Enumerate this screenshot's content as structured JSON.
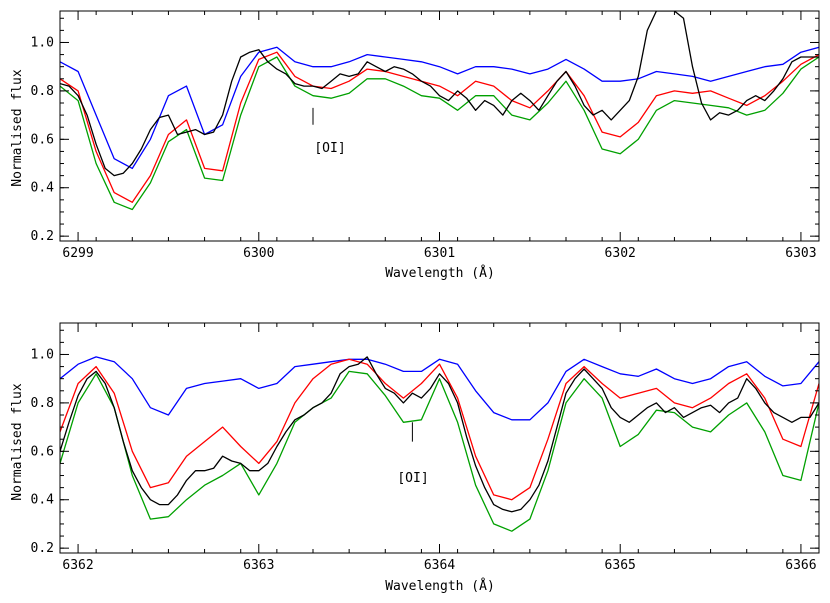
{
  "chart_data": [
    {
      "type": "line",
      "xlabel": "Wavelength (Å)",
      "ylabel": "Normalised flux",
      "xlim": [
        6298.9,
        6303.1
      ],
      "ylim": [
        0.18,
        1.13
      ],
      "xticks": [
        6299,
        6300,
        6301,
        6302,
        6303
      ],
      "yticks": [
        0.2,
        0.4,
        0.6,
        0.8,
        1.0
      ],
      "annotation": {
        "text": "[OI]",
        "x": 6300.3,
        "y_top": 0.73,
        "y_bottom": 0.66
      },
      "series": [
        {
          "color": "#0000ff",
          "x": [
            6298.9,
            6299.0,
            6299.1,
            6299.2,
            6299.3,
            6299.4,
            6299.5,
            6299.6,
            6299.7,
            6299.8,
            6299.9,
            6300.0,
            6300.1,
            6300.2,
            6300.3,
            6300.4,
            6300.5,
            6300.6,
            6300.7,
            6300.8,
            6300.9,
            6301.0,
            6301.1,
            6301.2,
            6301.3,
            6301.4,
            6301.5,
            6301.6,
            6301.7,
            6301.8,
            6301.9,
            6302.0,
            6302.1,
            6302.2,
            6302.3,
            6302.4,
            6302.5,
            6302.6,
            6302.7,
            6302.8,
            6302.9,
            6303.0,
            6303.1
          ],
          "y": [
            0.92,
            0.88,
            0.7,
            0.52,
            0.48,
            0.6,
            0.78,
            0.82,
            0.62,
            0.66,
            0.86,
            0.96,
            0.98,
            0.92,
            0.9,
            0.9,
            0.92,
            0.95,
            0.94,
            0.93,
            0.92,
            0.9,
            0.87,
            0.9,
            0.9,
            0.89,
            0.87,
            0.89,
            0.93,
            0.89,
            0.84,
            0.84,
            0.85,
            0.88,
            0.87,
            0.86,
            0.84,
            0.86,
            0.88,
            0.9,
            0.91,
            0.96,
            0.98
          ]
        },
        {
          "color": "#ff0000",
          "x": [
            6298.9,
            6299.0,
            6299.1,
            6299.2,
            6299.3,
            6299.4,
            6299.5,
            6299.6,
            6299.7,
            6299.8,
            6299.9,
            6300.0,
            6300.1,
            6300.2,
            6300.3,
            6300.4,
            6300.5,
            6300.6,
            6300.7,
            6300.8,
            6300.9,
            6301.0,
            6301.1,
            6301.2,
            6301.3,
            6301.4,
            6301.5,
            6301.6,
            6301.7,
            6301.8,
            6301.9,
            6302.0,
            6302.1,
            6302.2,
            6302.3,
            6302.4,
            6302.5,
            6302.6,
            6302.7,
            6302.8,
            6302.9,
            6303.0,
            6303.1
          ],
          "y": [
            0.85,
            0.8,
            0.55,
            0.38,
            0.34,
            0.45,
            0.62,
            0.68,
            0.48,
            0.47,
            0.75,
            0.93,
            0.96,
            0.86,
            0.82,
            0.81,
            0.84,
            0.89,
            0.88,
            0.86,
            0.84,
            0.82,
            0.78,
            0.84,
            0.82,
            0.76,
            0.73,
            0.8,
            0.88,
            0.78,
            0.63,
            0.61,
            0.67,
            0.78,
            0.8,
            0.79,
            0.8,
            0.77,
            0.74,
            0.78,
            0.84,
            0.91,
            0.95
          ]
        },
        {
          "color": "#00a000",
          "x": [
            6298.9,
            6299.0,
            6299.1,
            6299.2,
            6299.3,
            6299.4,
            6299.5,
            6299.6,
            6299.7,
            6299.8,
            6299.9,
            6300.0,
            6300.1,
            6300.2,
            6300.3,
            6300.4,
            6300.5,
            6300.6,
            6300.7,
            6300.8,
            6300.9,
            6301.0,
            6301.1,
            6301.2,
            6301.3,
            6301.4,
            6301.5,
            6301.6,
            6301.7,
            6301.8,
            6301.9,
            6302.0,
            6302.1,
            6302.2,
            6302.3,
            6302.4,
            6302.5,
            6302.6,
            6302.7,
            6302.8,
            6302.9,
            6303.0,
            6303.1
          ],
          "y": [
            0.82,
            0.76,
            0.5,
            0.34,
            0.31,
            0.42,
            0.59,
            0.64,
            0.44,
            0.43,
            0.7,
            0.9,
            0.94,
            0.82,
            0.78,
            0.77,
            0.79,
            0.85,
            0.85,
            0.82,
            0.78,
            0.77,
            0.72,
            0.78,
            0.78,
            0.7,
            0.68,
            0.75,
            0.84,
            0.72,
            0.56,
            0.54,
            0.6,
            0.72,
            0.76,
            0.75,
            0.74,
            0.73,
            0.7,
            0.72,
            0.79,
            0.89,
            0.94
          ]
        },
        {
          "color": "#000000",
          "x": [
            6298.9,
            6298.95,
            6299.0,
            6299.05,
            6299.1,
            6299.15,
            6299.2,
            6299.25,
            6299.3,
            6299.35,
            6299.4,
            6299.45,
            6299.5,
            6299.55,
            6299.6,
            6299.65,
            6299.7,
            6299.75,
            6299.8,
            6299.85,
            6299.9,
            6299.95,
            6300.0,
            6300.05,
            6300.1,
            6300.15,
            6300.2,
            6300.25,
            6300.3,
            6300.35,
            6300.4,
            6300.45,
            6300.5,
            6300.55,
            6300.6,
            6300.65,
            6300.7,
            6300.75,
            6300.8,
            6300.85,
            6300.9,
            6300.95,
            6301.0,
            6301.05,
            6301.1,
            6301.15,
            6301.2,
            6301.25,
            6301.3,
            6301.35,
            6301.4,
            6301.45,
            6301.5,
            6301.55,
            6301.6,
            6301.65,
            6301.7,
            6301.75,
            6301.8,
            6301.85,
            6301.9,
            6301.95,
            6302.0,
            6302.05,
            6302.1,
            6302.15,
            6302.2,
            6302.25,
            6302.3,
            6302.35,
            6302.4,
            6302.45,
            6302.5,
            6302.55,
            6302.6,
            6302.65,
            6302.7,
            6302.75,
            6302.8,
            6302.85,
            6302.9,
            6302.95,
            6303.0,
            6303.05,
            6303.1
          ],
          "y": [
            0.83,
            0.82,
            0.78,
            0.7,
            0.58,
            0.48,
            0.45,
            0.46,
            0.5,
            0.56,
            0.64,
            0.69,
            0.7,
            0.62,
            0.63,
            0.64,
            0.62,
            0.63,
            0.7,
            0.84,
            0.94,
            0.96,
            0.97,
            0.92,
            0.89,
            0.87,
            0.83,
            0.82,
            0.82,
            0.81,
            0.84,
            0.87,
            0.86,
            0.87,
            0.92,
            0.9,
            0.88,
            0.9,
            0.89,
            0.87,
            0.84,
            0.82,
            0.78,
            0.76,
            0.8,
            0.77,
            0.72,
            0.76,
            0.74,
            0.7,
            0.76,
            0.79,
            0.76,
            0.72,
            0.78,
            0.84,
            0.88,
            0.82,
            0.74,
            0.7,
            0.72,
            0.68,
            0.72,
            0.76,
            0.86,
            1.05,
            1.13,
            1.13,
            1.13,
            1.1,
            0.9,
            0.75,
            0.68,
            0.71,
            0.7,
            0.72,
            0.76,
            0.78,
            0.76,
            0.8,
            0.85,
            0.92,
            0.94,
            0.94,
            0.94
          ]
        }
      ]
    },
    {
      "type": "line",
      "xlabel": "Wavelength (Å)",
      "ylabel": "Normalised flux",
      "xlim": [
        6361.9,
        6366.1
      ],
      "ylim": [
        0.18,
        1.13
      ],
      "xticks": [
        6362,
        6363,
        6364,
        6365,
        6366
      ],
      "yticks": [
        0.2,
        0.4,
        0.6,
        0.8,
        1.0
      ],
      "annotation": {
        "text": "[OI]",
        "x": 6363.85,
        "y_top": 0.72,
        "y_bottom": 0.64
      },
      "series": [
        {
          "color": "#0000ff",
          "x": [
            6361.9,
            6362.0,
            6362.1,
            6362.2,
            6362.3,
            6362.4,
            6362.5,
            6362.6,
            6362.7,
            6362.8,
            6362.9,
            6363.0,
            6363.1,
            6363.2,
            6363.3,
            6363.4,
            6363.5,
            6363.6,
            6363.7,
            6363.8,
            6363.9,
            6364.0,
            6364.1,
            6364.2,
            6364.3,
            6364.4,
            6364.5,
            6364.6,
            6364.7,
            6364.8,
            6364.9,
            6365.0,
            6365.1,
            6365.2,
            6365.3,
            6365.4,
            6365.5,
            6365.6,
            6365.7,
            6365.8,
            6365.9,
            6366.0,
            6366.1
          ],
          "y": [
            0.9,
            0.96,
            0.99,
            0.97,
            0.9,
            0.78,
            0.75,
            0.86,
            0.88,
            0.89,
            0.9,
            0.86,
            0.88,
            0.95,
            0.96,
            0.97,
            0.98,
            0.98,
            0.96,
            0.93,
            0.93,
            0.98,
            0.96,
            0.85,
            0.76,
            0.73,
            0.73,
            0.8,
            0.93,
            0.98,
            0.95,
            0.92,
            0.91,
            0.94,
            0.9,
            0.88,
            0.9,
            0.95,
            0.97,
            0.91,
            0.87,
            0.88,
            0.97
          ]
        },
        {
          "color": "#ff0000",
          "x": [
            6361.9,
            6362.0,
            6362.1,
            6362.2,
            6362.3,
            6362.4,
            6362.5,
            6362.6,
            6362.7,
            6362.8,
            6362.9,
            6363.0,
            6363.1,
            6363.2,
            6363.3,
            6363.4,
            6363.5,
            6363.6,
            6363.7,
            6363.8,
            6363.9,
            6364.0,
            6364.1,
            6364.2,
            6364.3,
            6364.4,
            6364.5,
            6364.6,
            6364.7,
            6364.8,
            6364.9,
            6365.0,
            6365.1,
            6365.2,
            6365.3,
            6365.4,
            6365.5,
            6365.6,
            6365.7,
            6365.8,
            6365.9,
            6366.0,
            6366.1
          ],
          "y": [
            0.68,
            0.88,
            0.95,
            0.84,
            0.6,
            0.45,
            0.47,
            0.58,
            0.64,
            0.7,
            0.62,
            0.55,
            0.64,
            0.8,
            0.9,
            0.96,
            0.98,
            0.96,
            0.88,
            0.82,
            0.88,
            0.96,
            0.82,
            0.58,
            0.42,
            0.4,
            0.45,
            0.65,
            0.88,
            0.95,
            0.88,
            0.82,
            0.84,
            0.86,
            0.8,
            0.78,
            0.82,
            0.88,
            0.92,
            0.82,
            0.65,
            0.62,
            0.88
          ]
        },
        {
          "color": "#00a000",
          "x": [
            6361.9,
            6362.0,
            6362.1,
            6362.2,
            6362.3,
            6362.4,
            6362.5,
            6362.6,
            6362.7,
            6362.8,
            6362.9,
            6363.0,
            6363.1,
            6363.2,
            6363.3,
            6363.4,
            6363.5,
            6363.6,
            6363.7,
            6363.8,
            6363.9,
            6364.0,
            6364.1,
            6364.2,
            6364.3,
            6364.4,
            6364.5,
            6364.6,
            6364.7,
            6364.8,
            6364.9,
            6365.0,
            6365.1,
            6365.2,
            6365.3,
            6365.4,
            6365.5,
            6365.6,
            6365.7,
            6365.8,
            6365.9,
            6366.0,
            6366.1
          ],
          "y": [
            0.55,
            0.8,
            0.92,
            0.78,
            0.5,
            0.32,
            0.33,
            0.4,
            0.46,
            0.5,
            0.55,
            0.42,
            0.55,
            0.72,
            0.78,
            0.82,
            0.93,
            0.92,
            0.83,
            0.72,
            0.73,
            0.9,
            0.72,
            0.46,
            0.3,
            0.27,
            0.32,
            0.52,
            0.8,
            0.9,
            0.82,
            0.62,
            0.67,
            0.77,
            0.76,
            0.7,
            0.68,
            0.75,
            0.8,
            0.68,
            0.5,
            0.48,
            0.8
          ]
        },
        {
          "color": "#000000",
          "x": [
            6361.9,
            6361.95,
            6362.0,
            6362.05,
            6362.1,
            6362.15,
            6362.2,
            6362.25,
            6362.3,
            6362.35,
            6362.4,
            6362.45,
            6362.5,
            6362.55,
            6362.6,
            6362.65,
            6362.7,
            6362.75,
            6362.8,
            6362.85,
            6362.9,
            6362.95,
            6363.0,
            6363.05,
            6363.1,
            6363.15,
            6363.2,
            6363.25,
            6363.3,
            6363.35,
            6363.4,
            6363.45,
            6363.5,
            6363.55,
            6363.6,
            6363.65,
            6363.7,
            6363.75,
            6363.8,
            6363.85,
            6363.9,
            6363.95,
            6364.0,
            6364.05,
            6364.1,
            6364.15,
            6364.2,
            6364.25,
            6364.3,
            6364.35,
            6364.4,
            6364.45,
            6364.5,
            6364.55,
            6364.6,
            6364.65,
            6364.7,
            6364.75,
            6364.8,
            6364.85,
            6364.9,
            6364.95,
            6365.0,
            6365.05,
            6365.1,
            6365.15,
            6365.2,
            6365.25,
            6365.3,
            6365.35,
            6365.4,
            6365.45,
            6365.5,
            6365.55,
            6365.6,
            6365.65,
            6365.7,
            6365.75,
            6365.8,
            6365.85,
            6365.9,
            6365.95,
            6366.0,
            6366.05,
            6366.1
          ],
          "y": [
            0.6,
            0.72,
            0.83,
            0.9,
            0.93,
            0.88,
            0.78,
            0.64,
            0.52,
            0.45,
            0.4,
            0.38,
            0.38,
            0.42,
            0.48,
            0.52,
            0.52,
            0.53,
            0.58,
            0.56,
            0.55,
            0.52,
            0.52,
            0.55,
            0.62,
            0.68,
            0.73,
            0.75,
            0.78,
            0.8,
            0.84,
            0.92,
            0.95,
            0.96,
            0.99,
            0.92,
            0.86,
            0.84,
            0.8,
            0.84,
            0.82,
            0.86,
            0.92,
            0.88,
            0.8,
            0.66,
            0.54,
            0.45,
            0.38,
            0.36,
            0.35,
            0.36,
            0.4,
            0.46,
            0.56,
            0.7,
            0.84,
            0.9,
            0.94,
            0.9,
            0.86,
            0.78,
            0.74,
            0.72,
            0.75,
            0.78,
            0.8,
            0.76,
            0.78,
            0.74,
            0.76,
            0.78,
            0.79,
            0.76,
            0.8,
            0.82,
            0.9,
            0.86,
            0.8,
            0.76,
            0.74,
            0.72,
            0.74,
            0.74,
            0.8
          ]
        }
      ]
    }
  ]
}
